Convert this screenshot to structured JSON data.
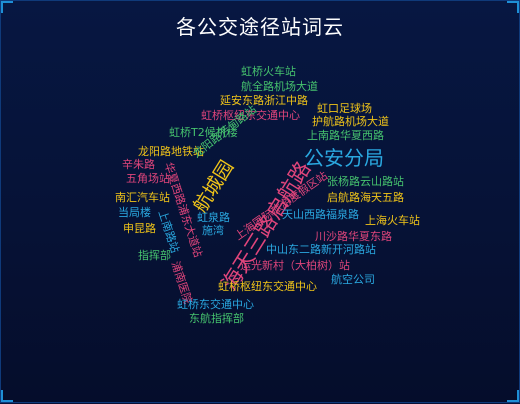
{
  "title": "各公交途径站词云",
  "words": [
    {
      "text": "虹桥火车站",
      "color": "#46c36e"
    },
    {
      "text": "航全路机场大道",
      "color": "#46c36e"
    },
    {
      "text": "延安东路浙江中路",
      "color": "#f0c419"
    },
    {
      "text": "虹口足球场",
      "color": "#f0c419"
    },
    {
      "text": "虹桥枢纽东交通中心",
      "color": "#e0457b"
    },
    {
      "text": "护航路机场大道",
      "color": "#f0c419"
    },
    {
      "text": "虹桥T2候机楼",
      "color": "#46c36e"
    },
    {
      "text": "上南路华夏西路",
      "color": "#46c36e"
    },
    {
      "text": "龙阳路地铁站",
      "color": "#f0c419"
    },
    {
      "text": "龙阳路芳甸路站",
      "color": "#46c36e"
    },
    {
      "text": "公安分局",
      "color": "#2aa8e0"
    },
    {
      "text": "辛朱路",
      "color": "#e0457b"
    },
    {
      "text": "五角场站",
      "color": "#e0457b"
    },
    {
      "text": "航城园",
      "color": "#f0c419"
    },
    {
      "text": "海天三路启航路",
      "color": "#e0457b"
    },
    {
      "text": "张杨路云山路站",
      "color": "#46c36e"
    },
    {
      "text": "南汇汽车站",
      "color": "#f0c419"
    },
    {
      "text": "启航路海天五路",
      "color": "#f0c419"
    },
    {
      "text": "当局楼",
      "color": "#2aa8e0"
    },
    {
      "text": "华夏西路浦东大道站",
      "color": "#e0457b"
    },
    {
      "text": "上海国际旅游度假区站",
      "color": "#e0457b"
    },
    {
      "text": "天山西路福泉路",
      "color": "#2aa8e0"
    },
    {
      "text": "上海火车站",
      "color": "#f0c419"
    },
    {
      "text": "虹泉路",
      "color": "#2aa8e0"
    },
    {
      "text": "上南路站",
      "color": "#2aa8e0"
    },
    {
      "text": "申昆路",
      "color": "#f0c419"
    },
    {
      "text": "施湾",
      "color": "#2aa8e0"
    },
    {
      "text": "川沙路华夏东路",
      "color": "#e0457b"
    },
    {
      "text": "中山东二路新开河路站",
      "color": "#2aa8e0"
    },
    {
      "text": "指挥部",
      "color": "#46c36e"
    },
    {
      "text": "运光新村（大柏树）站",
      "color": "#e0457b"
    },
    {
      "text": "浦南医院",
      "color": "#e0457b"
    },
    {
      "text": "航空公司",
      "color": "#2aa8e0"
    },
    {
      "text": "虹桥枢纽东交通中心",
      "color": "#f0c419"
    },
    {
      "text": "虹桥东交通中心",
      "color": "#2aa8e0"
    },
    {
      "text": "东航指挥部",
      "color": "#46c36e"
    }
  ]
}
